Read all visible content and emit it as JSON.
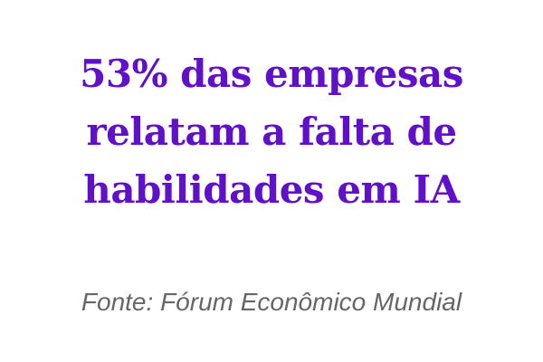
{
  "headline": {
    "lines": [
      "53% das empresas",
      "relatam a falta de",
      "habilidades em IA"
    ],
    "color": "#5f10c8"
  },
  "source": "Fonte: Fórum Econômico Mundial"
}
